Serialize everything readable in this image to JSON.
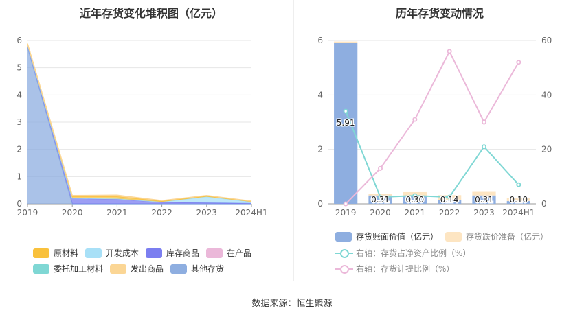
{
  "left_chart": {
    "title": "近年存货变化堆积图（亿元）",
    "legend": [
      {
        "name": "原材料",
        "color": "#f9c13c"
      },
      {
        "name": "开发成本",
        "color": "#a8e0f7"
      },
      {
        "name": "库存商品",
        "color": "#7b7ef0"
      },
      {
        "name": "在产品",
        "color": "#ebb8d9"
      },
      {
        "name": "委托加工材料",
        "color": "#7fd7d4"
      },
      {
        "name": "发出商品",
        "color": "#fbd695"
      },
      {
        "name": "其他存货",
        "color": "#8eaee0"
      }
    ]
  },
  "right_chart": {
    "title": "历年存货变动情况",
    "legend": [
      {
        "name": "存货账面价值（亿元）",
        "color": "#8eaee0"
      },
      {
        "name": "存货跌价准备（亿元）",
        "color": "#fde5c2"
      },
      {
        "name": "右轴：存货占净资产比例（%）",
        "color": "#7fd7d4"
      },
      {
        "name": "右轴：存货计提比例（%）",
        "color": "#ebb8d9"
      }
    ]
  },
  "source": "数据来源：恒生聚源",
  "chart_data": [
    {
      "type": "area",
      "stacked": true,
      "categories": [
        "2019",
        "2020",
        "2021",
        "2022",
        "2023",
        "2024H1"
      ],
      "ylim": [
        0,
        6
      ],
      "yticks": [
        0,
        1,
        2,
        3,
        4,
        5,
        6
      ],
      "grid": true,
      "legend_position": "bottom",
      "series": [
        {
          "name": "其他存货",
          "values": [
            5.75,
            0.0,
            0.0,
            0.0,
            0.0,
            0.0
          ]
        },
        {
          "name": "库存商品",
          "values": [
            0.1,
            0.2,
            0.18,
            0.06,
            0.04,
            0.02
          ]
        },
        {
          "name": "开发成本",
          "values": [
            0.0,
            0.01,
            0.01,
            0.01,
            0.22,
            0.05
          ]
        },
        {
          "name": "原材料",
          "values": [
            0.03,
            0.06,
            0.08,
            0.03,
            0.03,
            0.02
          ]
        },
        {
          "name": "发出商品",
          "values": [
            0.0,
            0.04,
            0.05,
            0.02,
            0.02,
            0.01
          ]
        }
      ]
    },
    {
      "type": "bar",
      "stacked": true,
      "categories": [
        "2019",
        "2020",
        "2021",
        "2022",
        "2023",
        "2024H1"
      ],
      "ylim": [
        0,
        6
      ],
      "yticks": [
        0,
        2,
        4,
        6
      ],
      "y2lim": [
        0,
        60
      ],
      "y2ticks": [
        0,
        20,
        40,
        60
      ],
      "legend_position": "bottom",
      "series": [
        {
          "name": "存货账面价值（亿元）",
          "values": [
            5.91,
            0.31,
            0.3,
            0.14,
            0.31,
            0.1
          ],
          "labels": [
            "5.91",
            "0.31",
            "0.30",
            "0.14",
            "0.31",
            "0.10"
          ]
        },
        {
          "name": "存货跌价准备（亿元）",
          "values": [
            0.05,
            0.06,
            0.13,
            0.18,
            0.13,
            0.11
          ]
        }
      ],
      "line_series": [
        {
          "name": "右轴：存货占净资产比例（%）",
          "axis": "right",
          "values": [
            34,
            2.5,
            3,
            2.5,
            21,
            7
          ]
        },
        {
          "name": "右轴：存货计提比例（%）",
          "axis": "right",
          "values": [
            0,
            13,
            31,
            56,
            30,
            52
          ]
        }
      ]
    }
  ]
}
